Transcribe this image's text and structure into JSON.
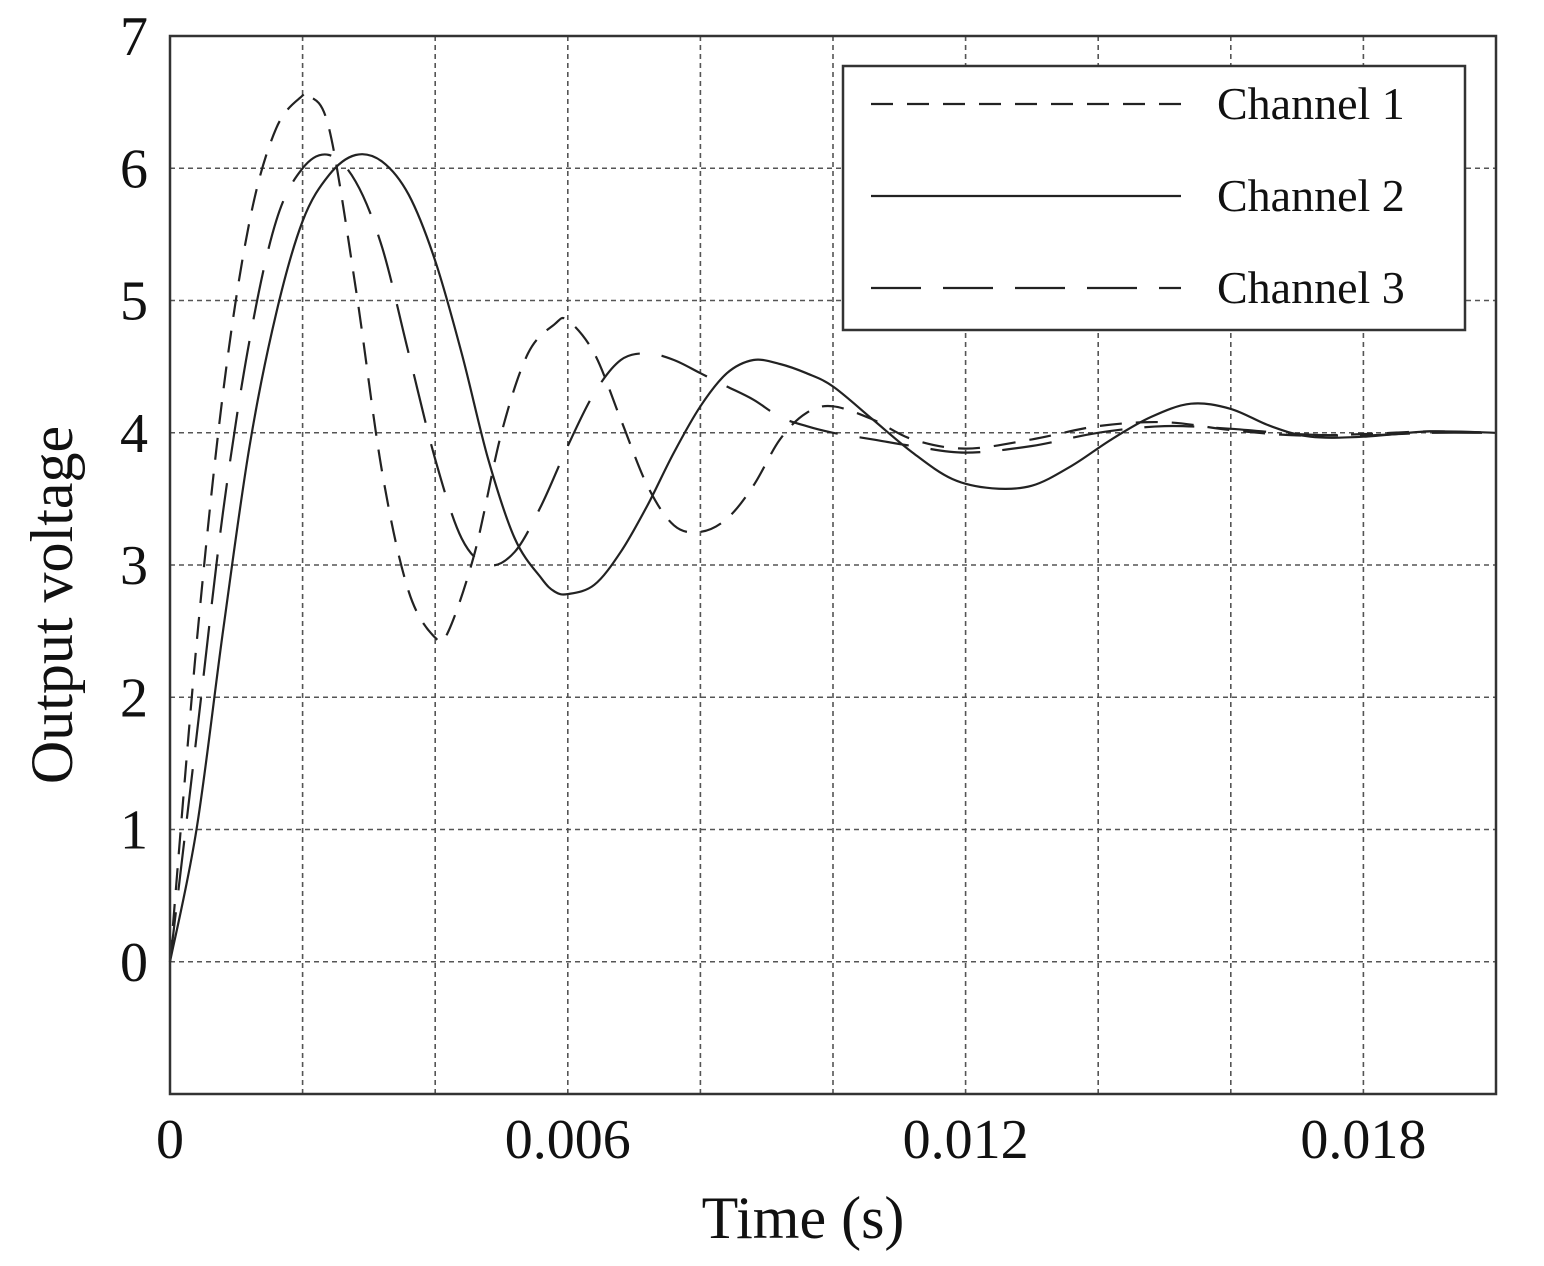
{
  "chart_data": {
    "type": "line",
    "title": "",
    "xlabel": "Time (s)",
    "ylabel": "Output voltage",
    "xlim": [
      0,
      0.02
    ],
    "ylim": [
      -1,
      7
    ],
    "xticks": [
      0,
      0.006,
      0.012,
      0.018
    ],
    "xtick_labels": [
      "0",
      "0.006",
      "0.012",
      "0.018"
    ],
    "yticks": [
      0,
      1,
      2,
      3,
      4,
      5,
      6,
      7
    ],
    "ytick_labels": [
      "0",
      "1",
      "2",
      "3",
      "4",
      "5",
      "6",
      "7"
    ],
    "x_gridlines": [
      0.002,
      0.004,
      0.006,
      0.008,
      0.01,
      0.012,
      0.014,
      0.016,
      0.018
    ],
    "y_gridlines": [
      0,
      1,
      2,
      3,
      4,
      5,
      6
    ],
    "grid": true,
    "legend_position": "top-right",
    "series": [
      {
        "name": "Channel 1",
        "dash": "short-dash",
        "x": [
          0,
          0.0004,
          0.0008,
          0.0012,
          0.0016,
          0.002,
          0.0021,
          0.0024,
          0.0028,
          0.0032,
          0.0036,
          0.004,
          0.0042,
          0.0046,
          0.005,
          0.0054,
          0.0058,
          0.006,
          0.0064,
          0.0068,
          0.0072,
          0.0076,
          0.008,
          0.0084,
          0.0088,
          0.0092,
          0.0096,
          0.01,
          0.0106,
          0.0112,
          0.012,
          0.013,
          0.014,
          0.015,
          0.016,
          0.017,
          0.018,
          0.019,
          0.02
        ],
        "y": [
          0,
          2.4,
          4.3,
          5.6,
          6.3,
          6.55,
          6.55,
          6.3,
          5.1,
          3.7,
          2.8,
          2.45,
          2.5,
          3.1,
          4.0,
          4.6,
          4.82,
          4.85,
          4.6,
          4.1,
          3.6,
          3.3,
          3.25,
          3.35,
          3.6,
          3.95,
          4.15,
          4.2,
          4.1,
          3.95,
          3.88,
          3.95,
          4.05,
          4.08,
          4.02,
          3.98,
          3.99,
          4.01,
          4.0
        ]
      },
      {
        "name": "Channel 2",
        "dash": "solid",
        "x": [
          0,
          0.0004,
          0.0008,
          0.0012,
          0.0016,
          0.002,
          0.0024,
          0.0028,
          0.0032,
          0.0036,
          0.004,
          0.0044,
          0.0048,
          0.0052,
          0.0056,
          0.0058,
          0.006,
          0.0064,
          0.0068,
          0.0072,
          0.0076,
          0.008,
          0.0084,
          0.0088,
          0.0092,
          0.0096,
          0.01,
          0.0106,
          0.0112,
          0.0118,
          0.0124,
          0.013,
          0.0136,
          0.0142,
          0.0148,
          0.0154,
          0.016,
          0.0166,
          0.0172,
          0.018,
          0.019,
          0.02
        ],
        "y": [
          0,
          1.0,
          2.5,
          3.9,
          4.9,
          5.6,
          5.95,
          6.1,
          6.05,
          5.8,
          5.3,
          4.6,
          3.8,
          3.2,
          2.9,
          2.8,
          2.78,
          2.85,
          3.1,
          3.45,
          3.85,
          4.2,
          4.45,
          4.55,
          4.52,
          4.45,
          4.35,
          4.1,
          3.85,
          3.65,
          3.58,
          3.6,
          3.75,
          3.95,
          4.12,
          4.22,
          4.18,
          4.05,
          3.97,
          3.97,
          4.01,
          4.0
        ]
      },
      {
        "name": "Channel 3",
        "dash": "long-dash",
        "x": [
          0,
          0.0004,
          0.0008,
          0.0012,
          0.0016,
          0.002,
          0.0024,
          0.0028,
          0.0032,
          0.0036,
          0.004,
          0.0044,
          0.0048,
          0.0052,
          0.0056,
          0.006,
          0.0064,
          0.0068,
          0.0072,
          0.0076,
          0.008,
          0.0084,
          0.0088,
          0.0092,
          0.0096,
          0.01,
          0.0106,
          0.0112,
          0.012,
          0.013,
          0.014,
          0.015,
          0.016,
          0.017,
          0.018,
          0.019,
          0.02
        ],
        "y": [
          0,
          1.7,
          3.4,
          4.7,
          5.6,
          6.0,
          6.1,
          5.9,
          5.4,
          4.6,
          3.8,
          3.2,
          3.0,
          3.1,
          3.45,
          3.9,
          4.3,
          4.55,
          4.6,
          4.55,
          4.45,
          4.35,
          4.25,
          4.12,
          4.05,
          4.0,
          3.95,
          3.9,
          3.85,
          3.9,
          4.0,
          4.05,
          4.03,
          3.99,
          3.98,
          4.0,
          4.0
        ]
      }
    ]
  }
}
